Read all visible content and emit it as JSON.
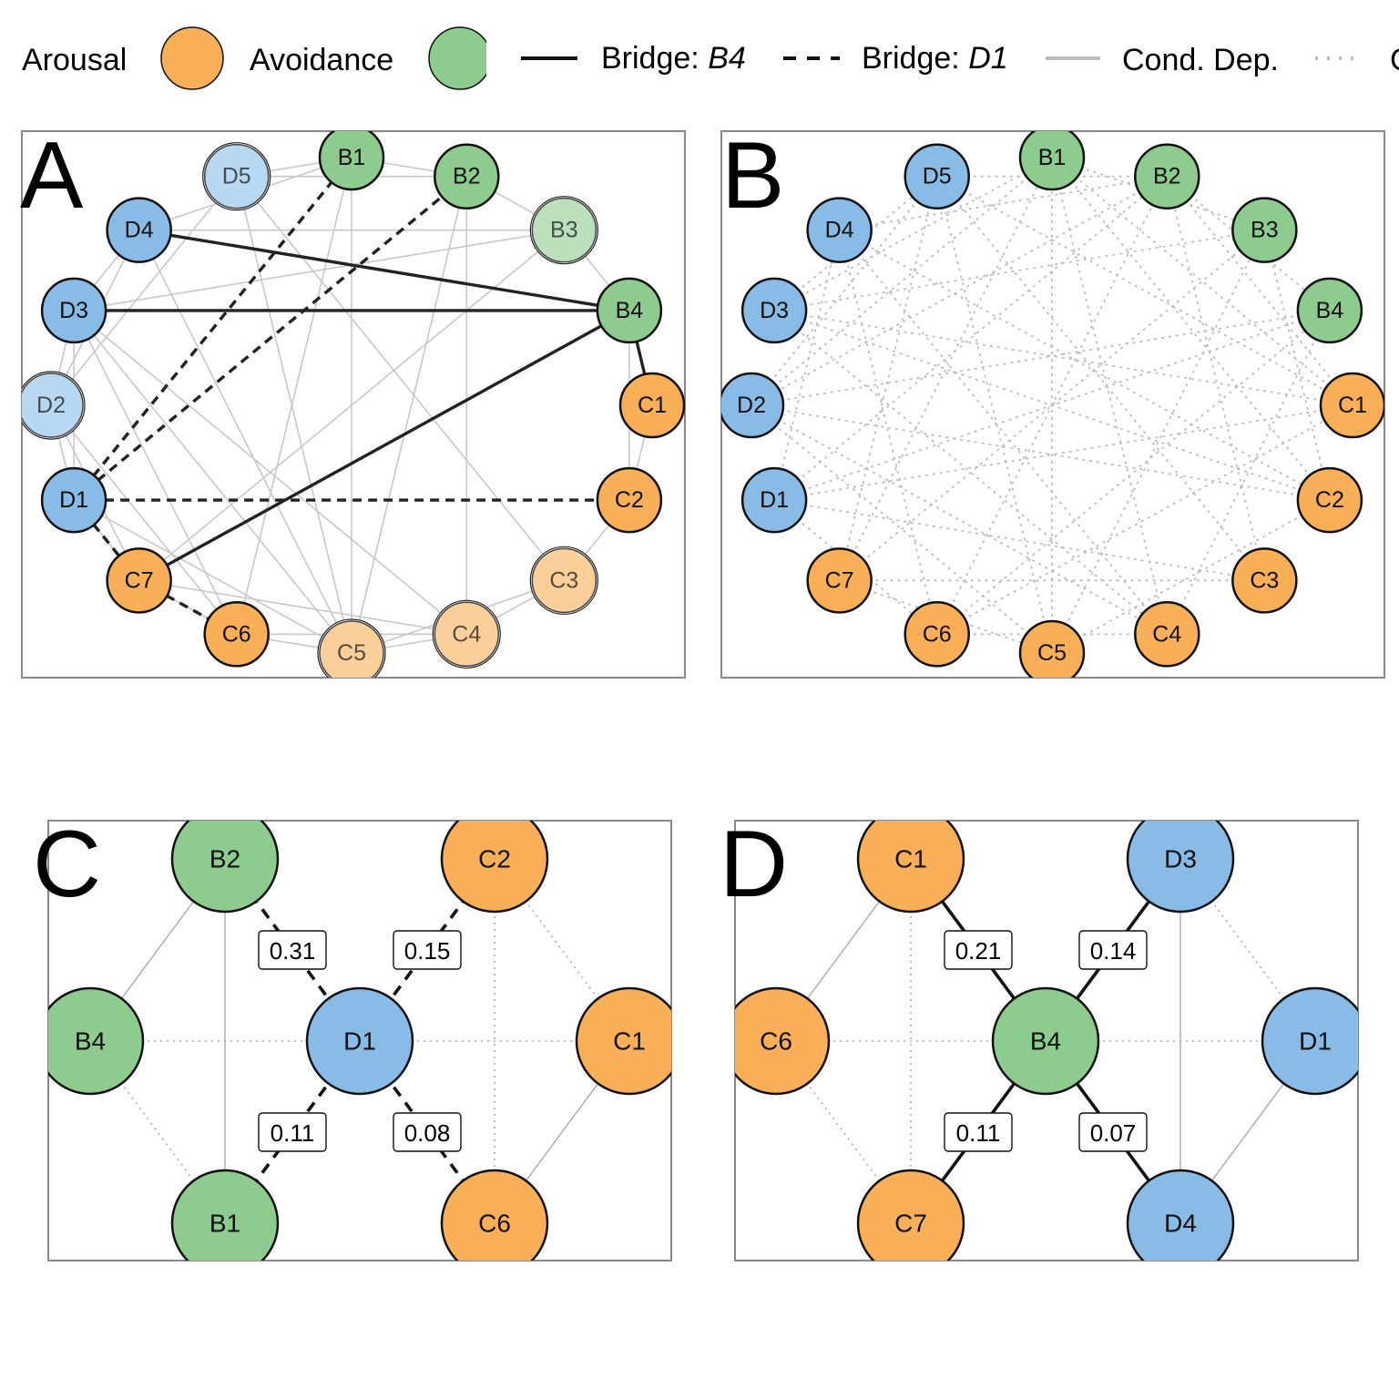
{
  "legend": {
    "items": [
      {
        "kind": "node",
        "label": "Arousal",
        "color": "#F9AF57"
      },
      {
        "kind": "node",
        "label": "Avoidance",
        "color": "#8DCB8E"
      },
      {
        "kind": "line",
        "label_prefix": "Bridge: ",
        "label_italic": "B4",
        "style": "solid-bold"
      },
      {
        "kind": "line",
        "label_prefix": "Bridge: ",
        "label_italic": "D1",
        "style": "dashed-bold"
      },
      {
        "kind": "line",
        "label": "Cond. Dep.",
        "style": "solid-light"
      },
      {
        "kind": "line",
        "label": "C",
        "style": "dotted-light"
      }
    ]
  },
  "colors": {
    "arousal": "#F9AF57",
    "avoidance": "#8DCB8E",
    "blue": "#88BCE6",
    "strong_edge": "#222222",
    "weak_edge": "#C8C8C8",
    "panel_border": "#888888"
  },
  "panels": {
    "A": {
      "letter": "A",
      "nodes": [
        {
          "id": "B1",
          "group": "avoidance",
          "faded": false
        },
        {
          "id": "B2",
          "group": "avoidance",
          "faded": false
        },
        {
          "id": "B3",
          "group": "avoidance",
          "faded": true
        },
        {
          "id": "B4",
          "group": "avoidance",
          "faded": false
        },
        {
          "id": "C1",
          "group": "arousal",
          "faded": false
        },
        {
          "id": "C2",
          "group": "arousal",
          "faded": false
        },
        {
          "id": "C3",
          "group": "arousal",
          "faded": true
        },
        {
          "id": "C4",
          "group": "arousal",
          "faded": true
        },
        {
          "id": "C5",
          "group": "arousal",
          "faded": true
        },
        {
          "id": "C6",
          "group": "arousal",
          "faded": false
        },
        {
          "id": "C7",
          "group": "arousal",
          "faded": false
        },
        {
          "id": "D1",
          "group": "blue",
          "faded": false
        },
        {
          "id": "D2",
          "group": "blue",
          "faded": true
        },
        {
          "id": "D3",
          "group": "blue",
          "faded": false
        },
        {
          "id": "D4",
          "group": "blue",
          "faded": false
        },
        {
          "id": "D5",
          "group": "blue",
          "faded": true
        }
      ],
      "bridge_edges": [
        {
          "from": "B4",
          "to": "D4",
          "style": "solid"
        },
        {
          "from": "B4",
          "to": "D3",
          "style": "solid"
        },
        {
          "from": "B4",
          "to": "C7",
          "style": "solid"
        },
        {
          "from": "B4",
          "to": "C1",
          "style": "solid"
        },
        {
          "from": "D1",
          "to": "B1",
          "style": "dashed"
        },
        {
          "from": "D1",
          "to": "B2",
          "style": "dashed"
        },
        {
          "from": "D1",
          "to": "C2",
          "style": "dashed"
        },
        {
          "from": "D1",
          "to": "C7",
          "style": "dashed"
        },
        {
          "from": "C7",
          "to": "C6",
          "style": "dashed"
        }
      ],
      "light_edges": [
        [
          "D5",
          "B1"
        ],
        [
          "B1",
          "B2"
        ],
        [
          "B2",
          "B3"
        ],
        [
          "B3",
          "B4"
        ],
        [
          "D4",
          "B1"
        ],
        [
          "D4",
          "D3"
        ],
        [
          "D3",
          "D2"
        ],
        [
          "D2",
          "D1"
        ],
        [
          "D1",
          "C7"
        ],
        [
          "C7",
          "C6"
        ],
        [
          "C6",
          "C5"
        ],
        [
          "C5",
          "C4"
        ],
        [
          "C4",
          "C3"
        ],
        [
          "C3",
          "C2"
        ],
        [
          "C2",
          "C1"
        ],
        [
          "D5",
          "B2"
        ],
        [
          "D4",
          "B3"
        ],
        [
          "D3",
          "B3"
        ],
        [
          "D3",
          "C6"
        ],
        [
          "D3",
          "C5"
        ],
        [
          "D2",
          "C6"
        ],
        [
          "D4",
          "C5"
        ],
        [
          "D5",
          "C5"
        ],
        [
          "D5",
          "C3"
        ],
        [
          "B1",
          "C6"
        ],
        [
          "B2",
          "C4"
        ],
        [
          "B2",
          "C5"
        ],
        [
          "B3",
          "C7"
        ],
        [
          "D2",
          "D4"
        ],
        [
          "D3",
          "D1"
        ],
        [
          "D2",
          "C7"
        ],
        [
          "C6",
          "C4"
        ],
        [
          "C7",
          "C4"
        ],
        [
          "D1",
          "C5"
        ],
        [
          "B1",
          "C5"
        ],
        [
          "D5",
          "D2"
        ],
        [
          "C5",
          "C3"
        ],
        [
          "B4",
          "C2"
        ],
        [
          "D3",
          "C4"
        ]
      ]
    },
    "B": {
      "letter": "B",
      "nodes": [
        {
          "id": "B1",
          "group": "avoidance"
        },
        {
          "id": "B2",
          "group": "avoidance"
        },
        {
          "id": "B3",
          "group": "avoidance"
        },
        {
          "id": "B4",
          "group": "avoidance"
        },
        {
          "id": "C1",
          "group": "arousal"
        },
        {
          "id": "C2",
          "group": "arousal"
        },
        {
          "id": "C3",
          "group": "arousal"
        },
        {
          "id": "C4",
          "group": "arousal"
        },
        {
          "id": "C5",
          "group": "arousal"
        },
        {
          "id": "C6",
          "group": "arousal"
        },
        {
          "id": "C7",
          "group": "arousal"
        },
        {
          "id": "D1",
          "group": "blue"
        },
        {
          "id": "D2",
          "group": "blue"
        },
        {
          "id": "D3",
          "group": "blue"
        },
        {
          "id": "D4",
          "group": "blue"
        },
        {
          "id": "D5",
          "group": "blue"
        }
      ],
      "dotted_edges": [
        [
          "D5",
          "B2"
        ],
        [
          "D5",
          "C5"
        ],
        [
          "D5",
          "C1"
        ],
        [
          "D5",
          "C7"
        ],
        [
          "D4",
          "B2"
        ],
        [
          "D4",
          "C2"
        ],
        [
          "D4",
          "C6"
        ],
        [
          "D3",
          "B1"
        ],
        [
          "D3",
          "C1"
        ],
        [
          "D3",
          "C4"
        ],
        [
          "D3",
          "B3"
        ],
        [
          "D2",
          "B4"
        ],
        [
          "D2",
          "C2"
        ],
        [
          "D2",
          "C5"
        ],
        [
          "D2",
          "B1"
        ],
        [
          "D1",
          "B2"
        ],
        [
          "D1",
          "C1"
        ],
        [
          "D1",
          "C3"
        ],
        [
          "D1",
          "B4"
        ],
        [
          "C7",
          "B3"
        ],
        [
          "C7",
          "C3"
        ],
        [
          "C7",
          "B1"
        ],
        [
          "C6",
          "B4"
        ],
        [
          "C6",
          "B2"
        ],
        [
          "C6",
          "C4"
        ],
        [
          "C5",
          "B1"
        ],
        [
          "C5",
          "B3"
        ],
        [
          "C4",
          "B1"
        ],
        [
          "C4",
          "D4"
        ],
        [
          "C3",
          "D5"
        ],
        [
          "C3",
          "B2"
        ],
        [
          "C2",
          "B1"
        ],
        [
          "C2",
          "D3"
        ],
        [
          "C1",
          "B2"
        ],
        [
          "B1",
          "B3"
        ],
        [
          "B2",
          "B4"
        ],
        [
          "D4",
          "D1"
        ],
        [
          "D3",
          "D5"
        ],
        [
          "C5",
          "C2"
        ],
        [
          "C6",
          "C1"
        ],
        [
          "D2",
          "C4"
        ],
        [
          "D1",
          "C6"
        ],
        [
          "C7",
          "C5"
        ],
        [
          "B4",
          "C4"
        ],
        [
          "B3",
          "C2"
        ],
        [
          "D5",
          "D2"
        ],
        [
          "B1",
          "C1"
        ],
        [
          "B2",
          "D2"
        ]
      ]
    },
    "C": {
      "letter": "C",
      "nodes": [
        {
          "id": "B2",
          "group": "avoidance"
        },
        {
          "id": "C2",
          "group": "arousal"
        },
        {
          "id": "B4",
          "group": "avoidance"
        },
        {
          "id": "D1",
          "group": "blue"
        },
        {
          "id": "C1",
          "group": "arousal"
        },
        {
          "id": "B1",
          "group": "avoidance"
        },
        {
          "id": "C6",
          "group": "arousal"
        }
      ],
      "weighted_edges": [
        {
          "from": "D1",
          "to": "B2",
          "weight": "0.31",
          "style": "dashed"
        },
        {
          "from": "D1",
          "to": "C2",
          "weight": "0.15",
          "style": "dashed"
        },
        {
          "from": "D1",
          "to": "B1",
          "weight": "0.11",
          "style": "dashed"
        },
        {
          "from": "D1",
          "to": "C6",
          "weight": "0.08",
          "style": "dashed"
        }
      ],
      "solid_light": [
        [
          "B2",
          "B4"
        ],
        [
          "B2",
          "B1"
        ],
        [
          "C1",
          "C6"
        ]
      ],
      "dotted_light": [
        [
          "B4",
          "D1"
        ],
        [
          "D1",
          "C1"
        ],
        [
          "B4",
          "B1"
        ],
        [
          "C2",
          "C6"
        ],
        [
          "C2",
          "C1"
        ]
      ]
    },
    "D": {
      "letter": "D",
      "nodes": [
        {
          "id": "C1",
          "group": "arousal"
        },
        {
          "id": "D3",
          "group": "blue"
        },
        {
          "id": "C6",
          "group": "arousal"
        },
        {
          "id": "B4",
          "group": "avoidance"
        },
        {
          "id": "D1",
          "group": "blue"
        },
        {
          "id": "C7",
          "group": "arousal"
        },
        {
          "id": "D4",
          "group": "blue"
        }
      ],
      "weighted_edges": [
        {
          "from": "B4",
          "to": "C1",
          "weight": "0.21",
          "style": "solid"
        },
        {
          "from": "B4",
          "to": "D3",
          "weight": "0.14",
          "style": "solid"
        },
        {
          "from": "B4",
          "to": "C7",
          "weight": "0.11",
          "style": "solid"
        },
        {
          "from": "B4",
          "to": "D4",
          "weight": "0.07",
          "style": "solid"
        }
      ],
      "solid_light": [
        [
          "C1",
          "C6"
        ],
        [
          "D3",
          "D4"
        ],
        [
          "D1",
          "D4"
        ]
      ],
      "dotted_light": [
        [
          "C6",
          "B4"
        ],
        [
          "B4",
          "D1"
        ],
        [
          "C1",
          "C7"
        ],
        [
          "C6",
          "C7"
        ],
        [
          "D3",
          "D1"
        ]
      ]
    }
  }
}
